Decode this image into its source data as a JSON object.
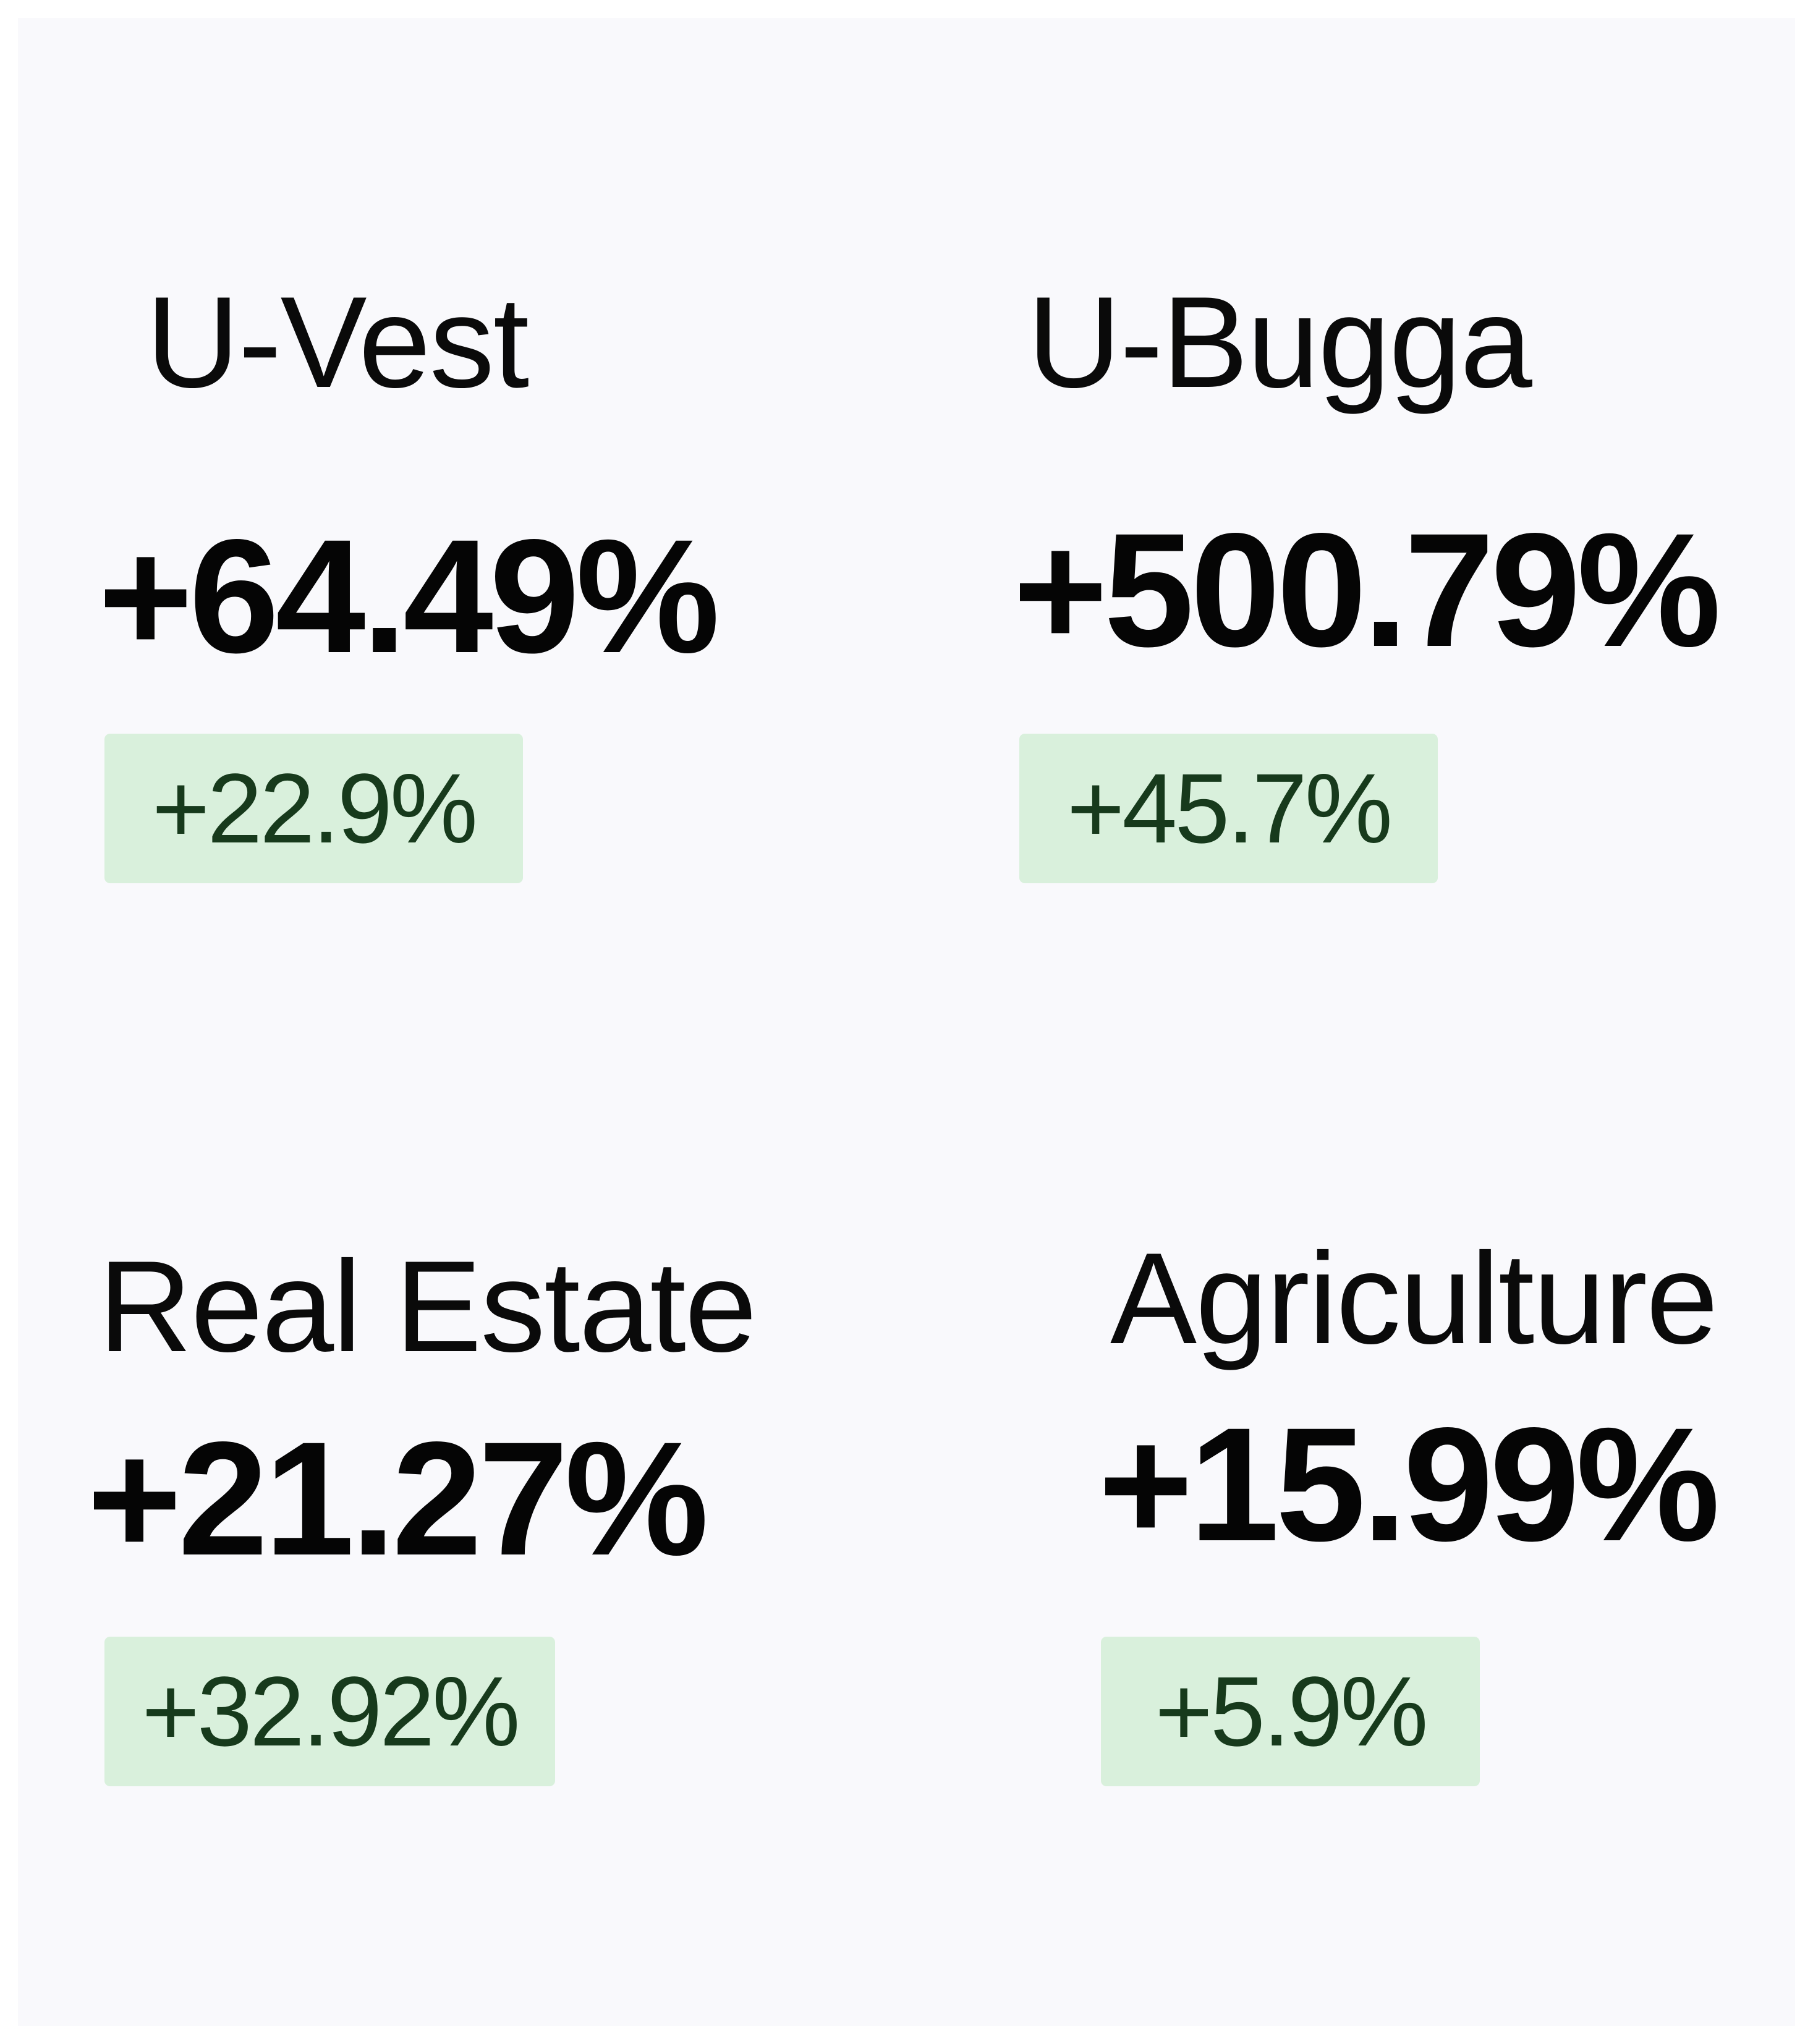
{
  "colors": {
    "page_background": "#ffffff",
    "panel_background": "#f9f9fc",
    "title_text": "#0a0a0a",
    "value_text": "#050505",
    "badge_background": "#d9f0dc",
    "badge_text": "#173a1c"
  },
  "cards": [
    {
      "title": "U-Vest",
      "value": "+64.49%",
      "change": "+22.9%"
    },
    {
      "title": "U-Bugga",
      "value": "+500.79%",
      "change": "+45.7%"
    },
    {
      "title": "Real Estate",
      "value": "+21.27%",
      "change": "+32.92%"
    },
    {
      "title": "Agriculture",
      "value": "+15.99%",
      "change": "+5.9%"
    }
  ]
}
